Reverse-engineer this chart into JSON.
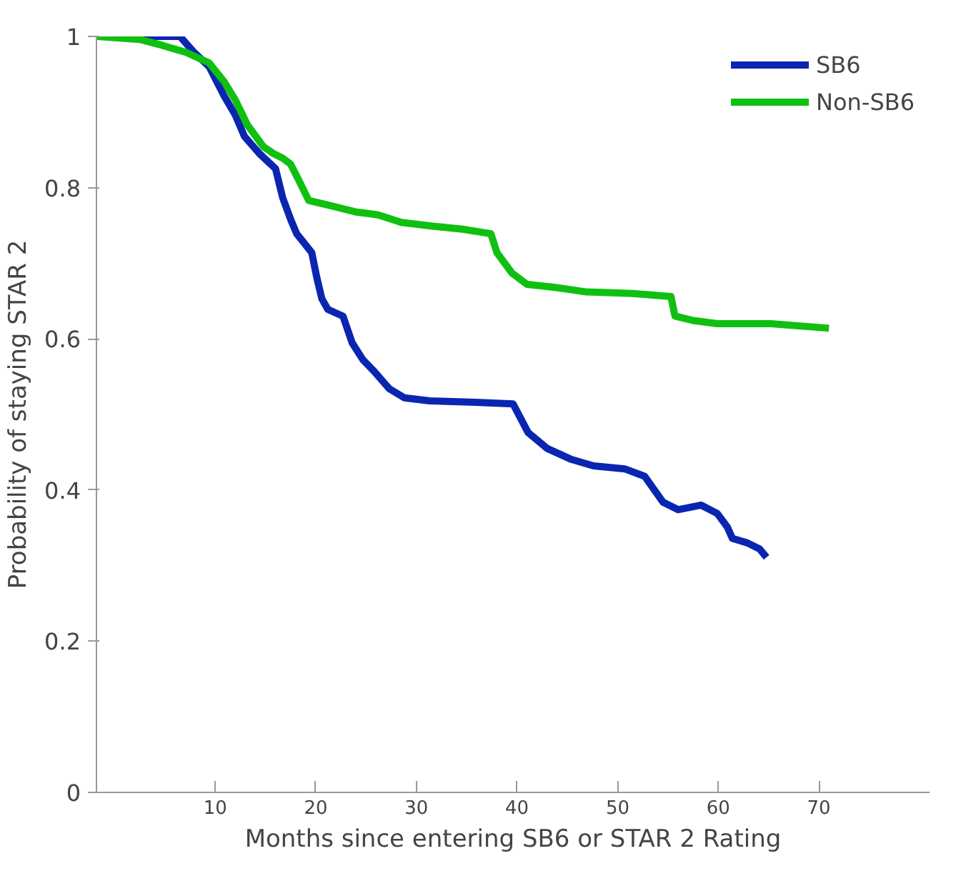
{
  "chart_data": {
    "type": "line",
    "xlabel": "Months since entering SB6 or STAR 2 Rating",
    "ylabel": "Probability of staying STAR 2",
    "xlim": [
      -1.8,
      81
    ],
    "ylim": [
      0,
      1
    ],
    "xticks": [
      10,
      20,
      30,
      40,
      50,
      60,
      70
    ],
    "yticks": [
      0,
      0.2,
      0.4,
      0.6,
      0.8,
      1
    ],
    "grid": false,
    "legend": "top right",
    "marker": "none",
    "line_style": "solid",
    "series": [
      {
        "name": "SB6",
        "color": "#0a25b0",
        "x": [
          -1.7,
          6.5,
          7.9,
          9.4,
          10.9,
          12,
          12.9,
          14.4,
          16,
          16.7,
          17.5,
          18.1,
          18.7,
          19.6,
          20.1,
          20.6,
          21.2,
          22.7,
          23.6,
          24.7,
          25.8,
          27.3,
          28.8,
          31.3,
          35.8,
          39.6,
          41.1,
          43,
          45.3,
          47.6,
          50.7,
          52.7,
          54.5,
          56,
          58.3,
          59.9,
          60.9,
          61.4,
          62.9,
          64.1,
          64.8
        ],
        "values": [
          1,
          1,
          0.979,
          0.96,
          0.921,
          0.896,
          0.868,
          0.845,
          0.825,
          0.787,
          0.758,
          0.739,
          0.729,
          0.714,
          0.681,
          0.653,
          0.639,
          0.63,
          0.595,
          0.572,
          0.557,
          0.534,
          0.522,
          0.518,
          0.516,
          0.514,
          0.476,
          0.455,
          0.441,
          0.432,
          0.428,
          0.418,
          0.384,
          0.374,
          0.38,
          0.369,
          0.351,
          0.336,
          0.33,
          0.322,
          0.311
        ]
      },
      {
        "name": "Non-SB6",
        "color": "#10c010",
        "x": [
          -1.7,
          2.5,
          4.8,
          7.1,
          9.4,
          10.9,
          12,
          13.2,
          14.8,
          15.8,
          16.7,
          17.5,
          18.3,
          19.3,
          21.2,
          23.9,
          26.2,
          28.5,
          31.6,
          34.6,
          37.4,
          38,
          39.5,
          41,
          43.8,
          46.9,
          51.5,
          55.3,
          55.7,
          57.6,
          59.9,
          65.2,
          71
        ],
        "values": [
          1,
          0.996,
          0.988,
          0.979,
          0.965,
          0.94,
          0.916,
          0.883,
          0.854,
          0.845,
          0.839,
          0.831,
          0.81,
          0.783,
          0.777,
          0.768,
          0.764,
          0.754,
          0.749,
          0.745,
          0.739,
          0.714,
          0.687,
          0.672,
          0.668,
          0.662,
          0.66,
          0.656,
          0.63,
          0.624,
          0.62,
          0.62,
          0.614
        ]
      }
    ]
  }
}
